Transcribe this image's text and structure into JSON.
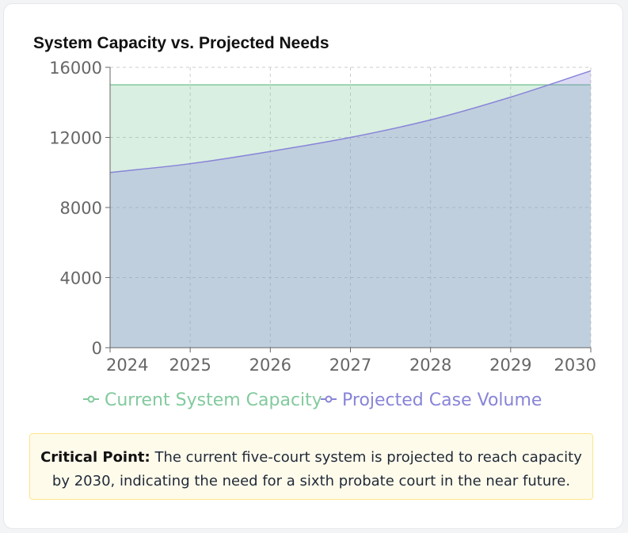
{
  "title": "System Capacity vs. Projected Needs",
  "colors": {
    "capacity": "#82ca9d",
    "volume": "#8884d8"
  },
  "chart_data": {
    "type": "area",
    "x": [
      2024,
      2025,
      2026,
      2027,
      2028,
      2029,
      2030
    ],
    "ylim": [
      0,
      16000
    ],
    "yticks": [
      0,
      4000,
      8000,
      12000,
      16000
    ],
    "grid": true,
    "legend": "bottom",
    "series": [
      {
        "name": "Current System Capacity",
        "values": [
          15000,
          15000,
          15000,
          15000,
          15000,
          15000,
          15000
        ]
      },
      {
        "name": "Projected Case Volume",
        "values": [
          10000,
          10500,
          11200,
          12000,
          13000,
          14300,
          15800
        ]
      }
    ]
  },
  "note": {
    "label": "Critical Point:",
    "text": " The current five-court system is projected to reach capacity by 2030, indicating the need for a sixth probate court in the near future."
  }
}
